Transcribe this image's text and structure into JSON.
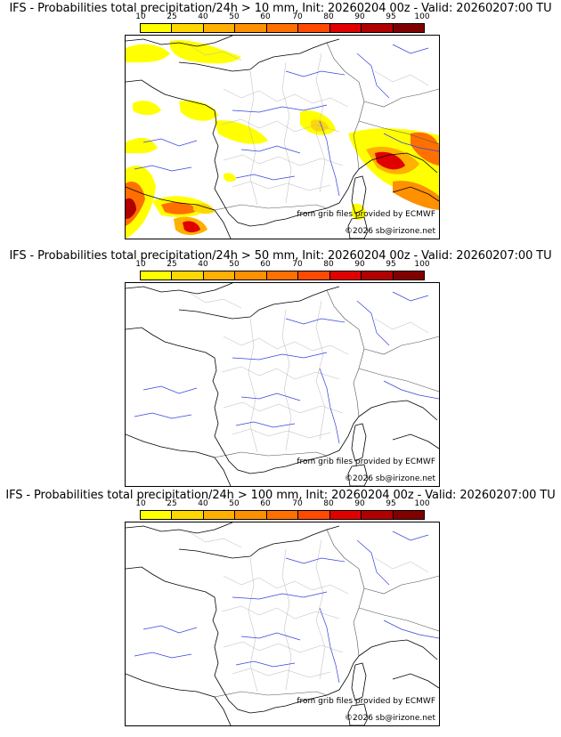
{
  "colorbar": {
    "ticks": [
      "10",
      "25",
      "40",
      "50",
      "60",
      "70",
      "80",
      "90",
      "95",
      "100"
    ],
    "colors": [
      "#ffff00",
      "#ffd700",
      "#ffb000",
      "#ff9000",
      "#ff7000",
      "#ff4a00",
      "#e00000",
      "#b00000",
      "#800000"
    ]
  },
  "credits": {
    "source": "from grib files provided by ECMWF",
    "copyright": "©2026 sb@irizone.net"
  },
  "panels": [
    {
      "title": "IFS - Probabilities total precipitation/24h > 10 mm, Init: 20260204 00z - Valid: 20260207:00 TU",
      "has_precip": true
    },
    {
      "title": "IFS - Probabilities total precipitation/24h > 50 mm, Init: 20260204 00z - Valid: 20260207:00 TU",
      "has_precip": false
    },
    {
      "title": "IFS - Probabilities total precipitation/24h > 100 mm, Init: 20260204 00z - Valid: 20260207:00 TU",
      "has_precip": false
    }
  ]
}
